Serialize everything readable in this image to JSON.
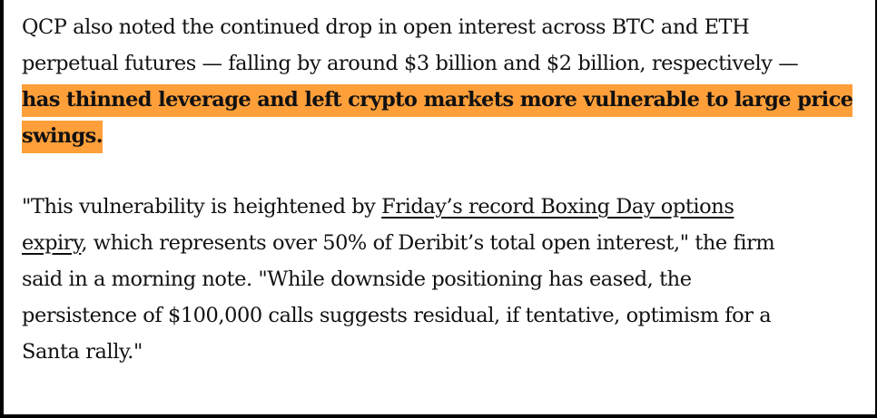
{
  "article": {
    "paragraph1": {
      "line1": "QCP also noted the continued drop in open interest across BTC and ETH",
      "line2": "perpetual futures — falling by around $3 billion and $2 billion, respectively —",
      "highlight_line1": "has thinned leverage and left crypto markets more vulnerable to large price",
      "highlight_line2": "swings."
    },
    "paragraph2": {
      "line1_prefix": "\"This vulnerability is heightened by ",
      "link_part1": "Friday’s record Boxing Day options",
      "link_part2": "expiry",
      "line2_suffix": ", which represents over 50% of Deribit’s total open interest,\" the firm",
      "line3": "said in a morning note. \"While downside positioning has eased, the",
      "line4": "persistence of $100,000 calls suggests residual, if tentative, optimism for a",
      "line5": "Santa rally.\""
    }
  },
  "colors": {
    "highlight": "#ff9f3a",
    "text": "#111111",
    "frame_border": "#000000"
  }
}
